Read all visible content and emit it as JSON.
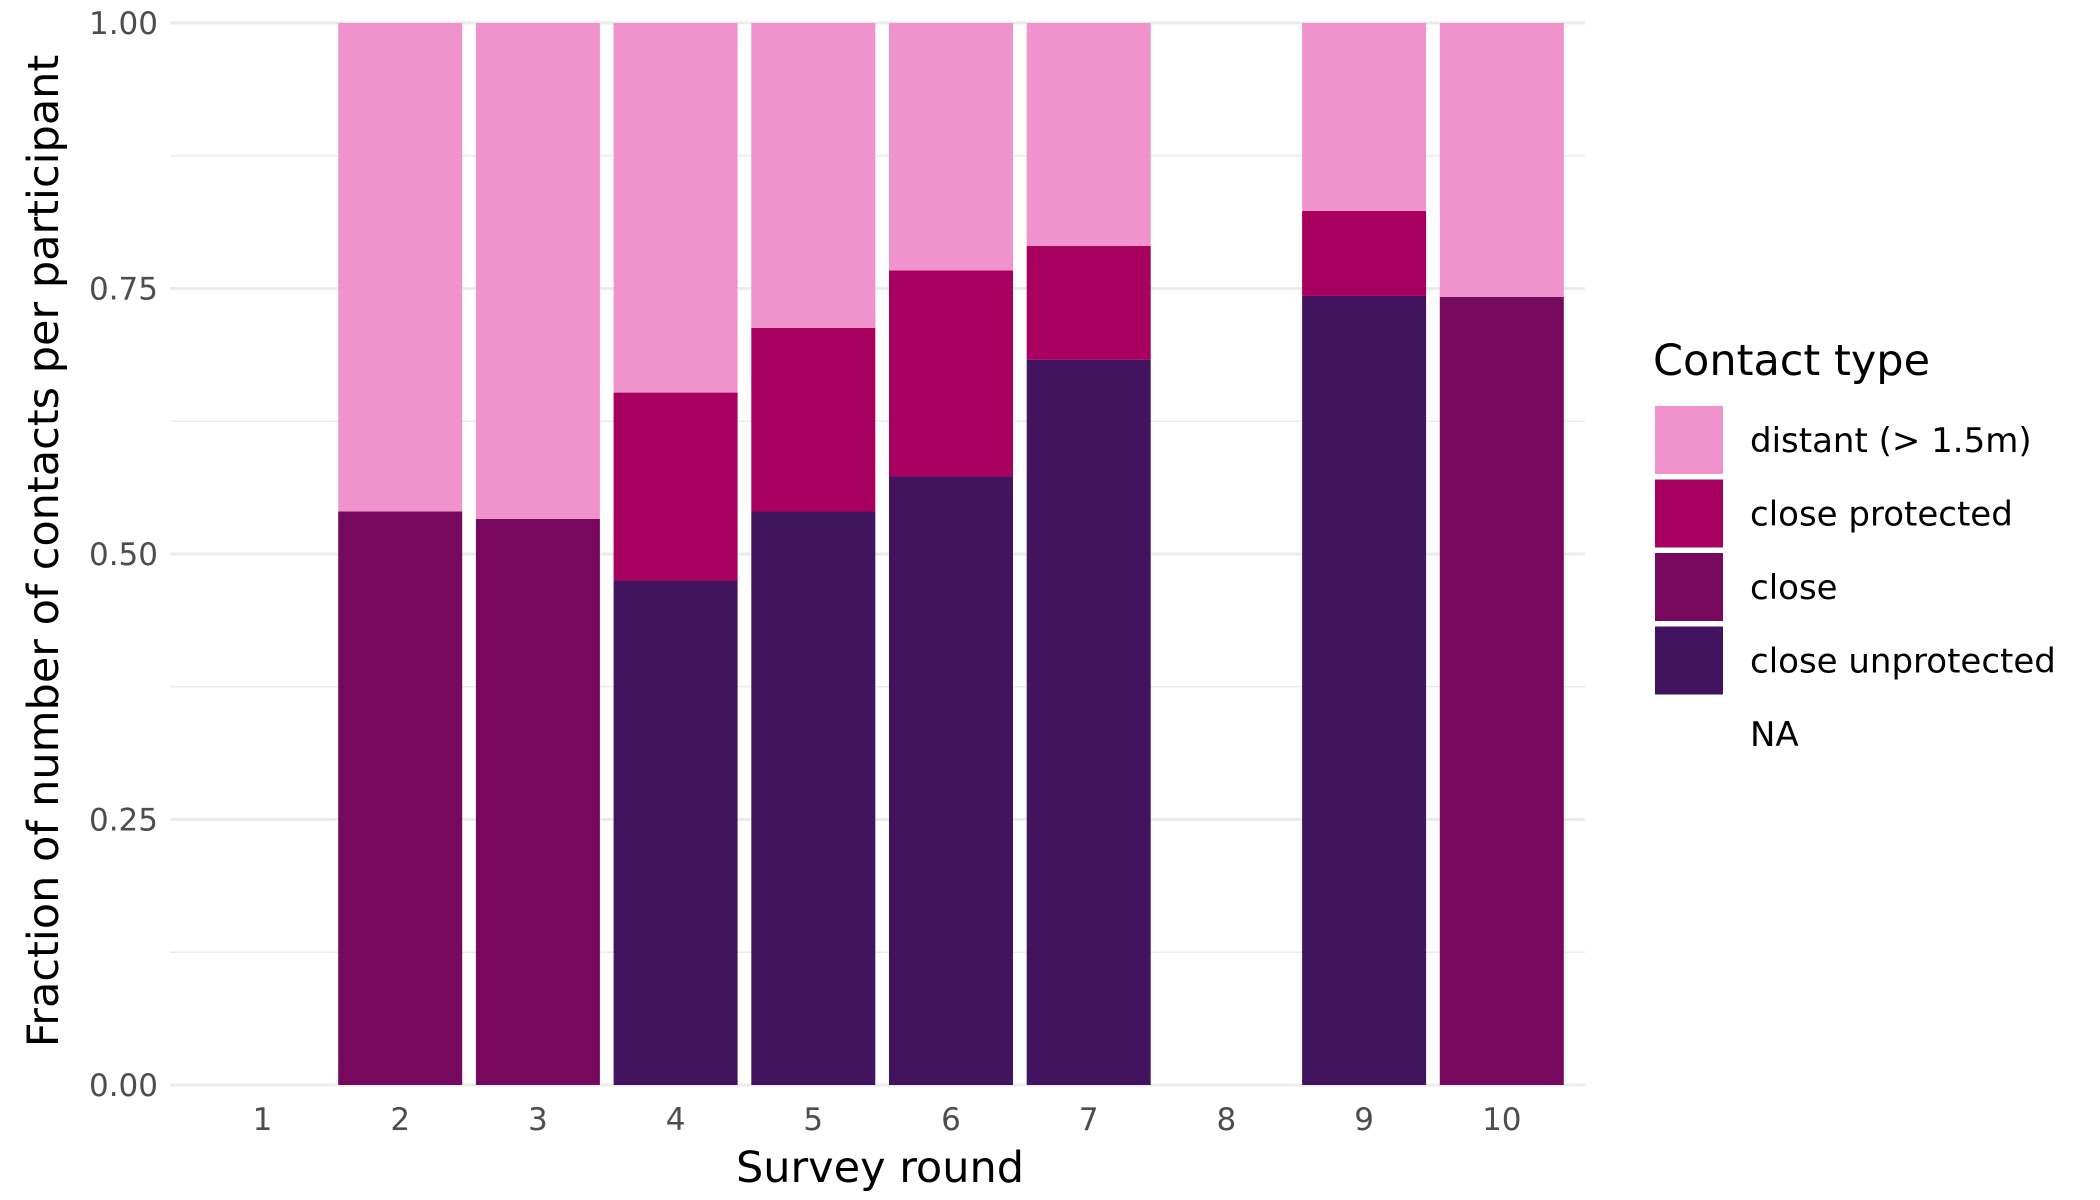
{
  "chart_data": {
    "type": "bar",
    "stacked": true,
    "xlabel": "Survey round",
    "ylabel": "Fraction of number of contacts per participant",
    "ylim": [
      0,
      1
    ],
    "y_ticks": [
      "0.00",
      "0.25",
      "0.50",
      "0.75",
      "1.00"
    ],
    "categories": [
      "1",
      "2",
      "3",
      "4",
      "5",
      "6",
      "7",
      "8",
      "9",
      "10"
    ],
    "grid": true,
    "legend": {
      "title": "Contact type",
      "position": "right"
    },
    "series": [
      {
        "name": "close unprotected",
        "color": "#42145f",
        "values": [
          0,
          0,
          0,
          0.475,
          0.54,
          0.573,
          0.683,
          0,
          0.743,
          0
        ]
      },
      {
        "name": "close",
        "color": "#76095e",
        "values": [
          0,
          0.54,
          0.533,
          0,
          0,
          0,
          0,
          0,
          0,
          0.742
        ]
      },
      {
        "name": "close protected",
        "color": "#a8005e",
        "values": [
          0,
          0,
          0,
          0.177,
          0.173,
          0.194,
          0.107,
          0,
          0.08,
          0
        ]
      },
      {
        "name": "distant (> 1.5m)",
        "color": "#f093cd",
        "values": [
          0,
          0.46,
          0.467,
          0.348,
          0.287,
          0.233,
          0.21,
          0,
          0.177,
          0.258
        ]
      },
      {
        "name": "NA",
        "color": "#ffffff",
        "values": [
          0,
          0,
          0,
          0,
          0,
          0,
          0,
          0,
          0,
          0
        ]
      }
    ],
    "legend_order": [
      "distant (> 1.5m)",
      "close protected",
      "close",
      "close unprotected",
      "NA"
    ]
  }
}
